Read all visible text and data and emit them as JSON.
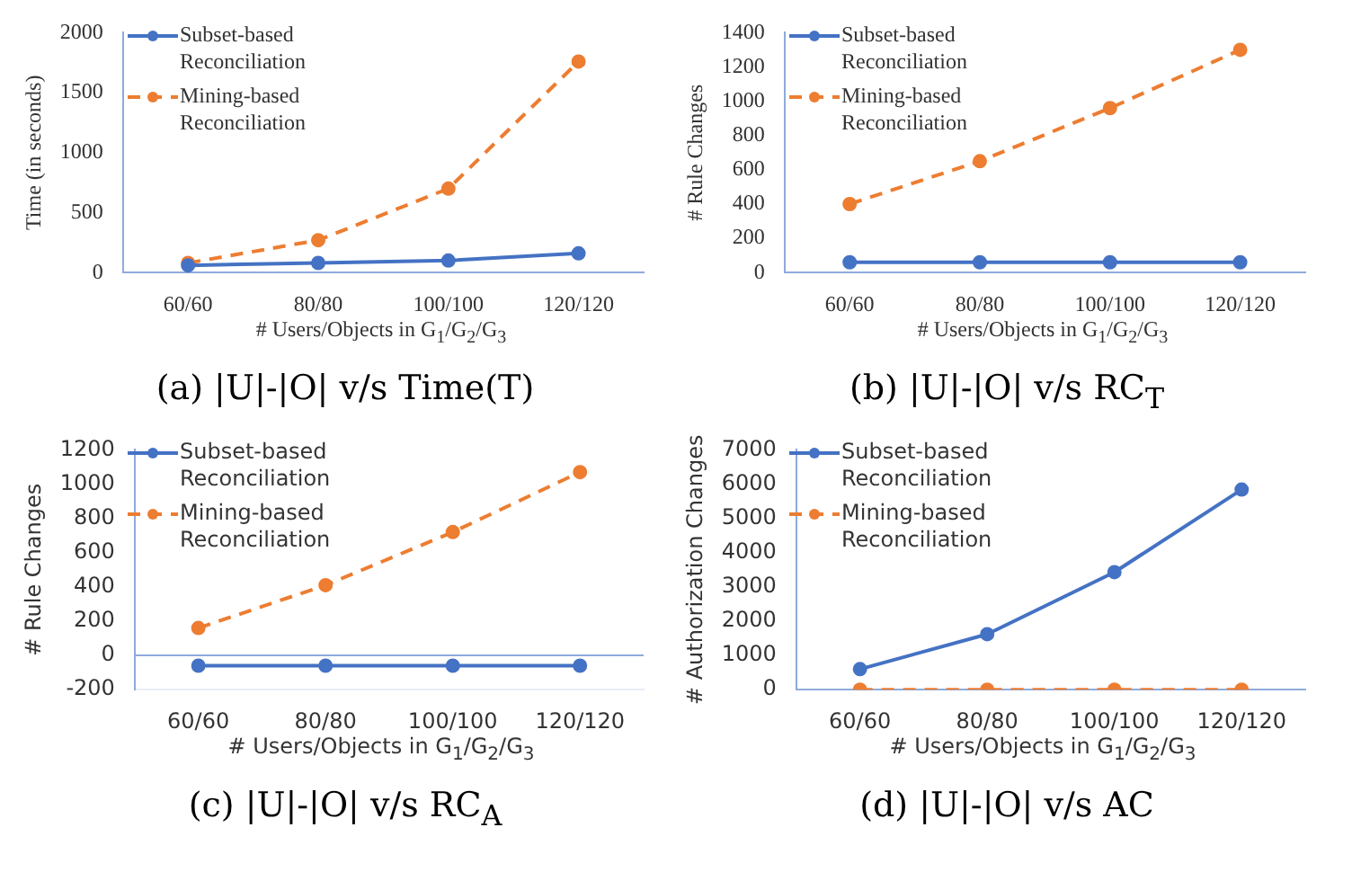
{
  "chart_data": [
    {
      "type": "line",
      "categories": [
        "60/60",
        "80/80",
        "100/100",
        "120/120"
      ],
      "xlabel": "# Users/Objects in  G$_{1}$/G$_{2}$/G$_{3}$",
      "ylabel": "Time (in seconds)",
      "ylim": [
        0,
        2000
      ],
      "yticks": [
        0,
        500,
        1000,
        1500,
        2000
      ],
      "grid": false,
      "legend": "top left",
      "marker": "circle",
      "annotations": [
        "(a)  |U|-|O| v/s Time(T)"
      ],
      "series": [
        {
          "name": "Subset-based Reconciliation",
          "color": "#4472c4",
          "line_style": "solid",
          "values": [
            60,
            80,
            100,
            160
          ]
        },
        {
          "name": "Mining-based Reconciliation",
          "color": "#ed7d31",
          "line_style": "dashed",
          "values": [
            80,
            270,
            700,
            1760
          ]
        }
      ]
    },
    {
      "type": "line",
      "categories": [
        "60/60",
        "80/80",
        "100/100",
        "120/120"
      ],
      "xlabel": "# Users/Objects in  G$_{1}$/G$_{2}$/G$_{3}$",
      "ylabel": "# Rule Changes",
      "ylim": [
        0,
        1400
      ],
      "yticks": [
        0,
        200,
        400,
        600,
        800,
        1000,
        1200,
        1400
      ],
      "grid": false,
      "legend": "top left",
      "marker": "circle",
      "annotations": [
        "(b)  |U|-|O| v/s RC$_{T}$"
      ],
      "series": [
        {
          "name": "Subset-based Reconciliation",
          "color": "#4472c4",
          "line_style": "solid",
          "values": [
            60,
            60,
            60,
            60
          ]
        },
        {
          "name": "Mining-based Reconciliation",
          "color": "#ed7d31",
          "line_style": "dashed",
          "values": [
            400,
            650,
            960,
            1300
          ]
        }
      ]
    },
    {
      "type": "line",
      "categories": [
        "60/60",
        "80/80",
        "100/100",
        "120/120"
      ],
      "xlabel": "# Users/Objects in  G$_{1}$/G$_{2}$/G$_{3}$",
      "ylabel": "# Rule Changes",
      "ylim": [
        -200,
        1200
      ],
      "yticks": [
        -200,
        0,
        200,
        400,
        600,
        800,
        1000,
        1200
      ],
      "grid": false,
      "legend": "top left",
      "marker": "circle",
      "annotations": [
        "(c)  |U|-|O| v/s RC$_{A}$"
      ],
      "ref_lines": [
        {
          "axis": "y",
          "value": 0,
          "color": "#8eaadb"
        }
      ],
      "series": [
        {
          "name": "Subset-based Reconciliation",
          "color": "#4472c4",
          "line_style": "solid",
          "values": [
            -60,
            -60,
            -60,
            -60
          ]
        },
        {
          "name": "Mining-based Reconciliation",
          "color": "#ed7d31",
          "line_style": "dashed",
          "values": [
            160,
            410,
            720,
            1070
          ]
        }
      ]
    },
    {
      "type": "line",
      "categories": [
        "60/60",
        "80/80",
        "100/100",
        "120/120"
      ],
      "xlabel": "# Users/Objects in  G$_{1}$/G$_{2}$/G$_{3}$",
      "ylabel": "# Authorization Changes",
      "ylim": [
        0,
        7000
      ],
      "yticks": [
        0,
        1000,
        2000,
        3000,
        4000,
        5000,
        6000,
        7000
      ],
      "grid": false,
      "legend": "top left",
      "marker": "circle",
      "annotations": [
        "(d)  |U|-|O| v/s AC"
      ],
      "series": [
        {
          "name": "Subset-based Reconciliation",
          "color": "#4472c4",
          "line_style": "solid",
          "values": [
            600,
            1620,
            3430,
            5840
          ]
        },
        {
          "name": "Mining-based Reconciliation",
          "color": "#ed7d31",
          "line_style": "dashed",
          "values": [
            0,
            0,
            0,
            0
          ]
        }
      ]
    }
  ]
}
